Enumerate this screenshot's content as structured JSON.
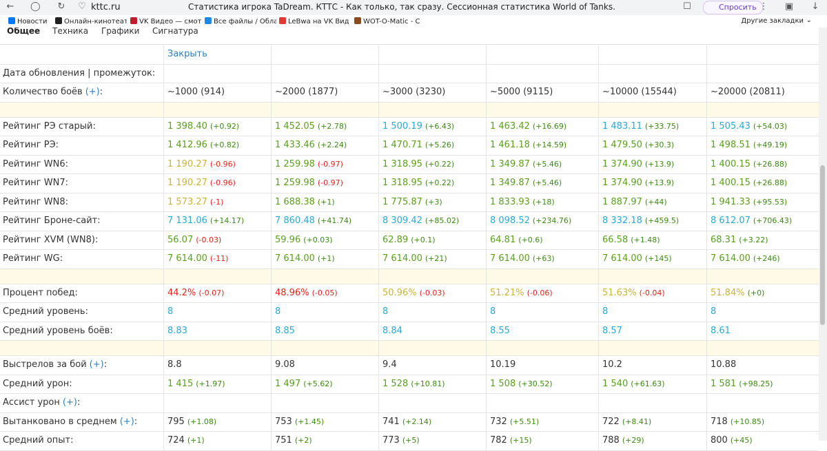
{
  "browser": {
    "url": "kttc.ru",
    "title": "Статистика игрока TaDream. КТТС - Как только, так сразу. Сессионная статистика World of Tanks.",
    "ask": "Спросить",
    "bookmarks": [
      "Новости",
      "Онлайн-кинотеат",
      "VK Видео — смот",
      "Все файлы / Обла",
      "LeBwa на VK Вид",
      "WOT-O-Matic - С"
    ],
    "other_bookmarks": "Другие закладки"
  },
  "tabs": [
    "Общее",
    "Техника",
    "Графики",
    "Сигнатура"
  ],
  "table": {
    "rows": [
      {
        "cells": [
          {
            "value": "Закрыть",
            "color": "#2a7fc0"
          }
        ]
      },
      {
        "label": "Дата обновления | промежуток:",
        "cells": []
      },
      {
        "label": {
          "text": "Количество боёв",
          "link": "(+)",
          "suffix": ":"
        },
        "cells": [
          {
            "value": "~1000 (914)",
            "color": "#333333"
          },
          {
            "value": "~2000 (1877)",
            "color": "#333333"
          },
          {
            "value": "~3000 (3230)",
            "color": "#333333"
          },
          {
            "value": "~5000 (9115)",
            "color": "#333333"
          },
          {
            "value": "~10000 (15544)",
            "color": "#333333"
          },
          {
            "value": "~20000 (20811)",
            "color": "#333333"
          }
        ]
      },
      {
        "separator": true
      },
      {
        "label": "Рейтинг РЭ старый:",
        "cells": [
          {
            "value": "1 398.40",
            "delta": "(+0.92)",
            "color": "#5a9e1e",
            "delta_color": "#3b8a12"
          },
          {
            "value": "1 452.05",
            "delta": "(+2.78)",
            "color": "#5a9e1e",
            "delta_color": "#3b8a12"
          },
          {
            "value": "1 500.19",
            "delta": "(+6.43)",
            "color": "#29a9d6",
            "delta_color": "#3b8a12"
          },
          {
            "value": "1 463.42",
            "delta": "(+16.69)",
            "color": "#5a9e1e",
            "delta_color": "#3b8a12"
          },
          {
            "value": "1 483.11",
            "delta": "(+33.75)",
            "color": "#29a9d6",
            "delta_color": "#3b8a12"
          },
          {
            "value": "1 505.43",
            "delta": "(+54.03)",
            "color": "#29a9d6",
            "delta_color": "#3b8a12"
          }
        ]
      },
      {
        "label": "Рейтинг РЭ:",
        "cells": [
          {
            "value": "1 412.96",
            "delta": "(+0.82)",
            "color": "#5a9e1e",
            "delta_color": "#3b8a12"
          },
          {
            "value": "1 433.46",
            "delta": "(+2.24)",
            "color": "#5a9e1e",
            "delta_color": "#3b8a12"
          },
          {
            "value": "1 470.71",
            "delta": "(+5.26)",
            "color": "#5a9e1e",
            "delta_color": "#3b8a12"
          },
          {
            "value": "1 461.18",
            "delta": "(+14.59)",
            "color": "#5a9e1e",
            "delta_color": "#3b8a12"
          },
          {
            "value": "1 479.50",
            "delta": "(+30.3)",
            "color": "#5a9e1e",
            "delta_color": "#3b8a12"
          },
          {
            "value": "1 498.51",
            "delta": "(+49.19)",
            "color": "#5a9e1e",
            "delta_color": "#3b8a12"
          }
        ]
      },
      {
        "label": "Рейтинг WN6:",
        "cells": [
          {
            "value": "1 190.27",
            "delta": "(-0.96)",
            "color": "#c9b43a",
            "delta_color": "#e0251b"
          },
          {
            "value": "1 259.98",
            "delta": "(-0.97)",
            "color": "#5a9e1e",
            "delta_color": "#e0251b"
          },
          {
            "value": "1 318.95",
            "delta": "(+0.22)",
            "color": "#5a9e1e",
            "delta_color": "#3b8a12"
          },
          {
            "value": "1 349.87",
            "delta": "(+5.46)",
            "color": "#5a9e1e",
            "delta_color": "#3b8a12"
          },
          {
            "value": "1 374.90",
            "delta": "(+13.9)",
            "color": "#5a9e1e",
            "delta_color": "#3b8a12"
          },
          {
            "value": "1 400.15",
            "delta": "(+26.88)",
            "color": "#5a9e1e",
            "delta_color": "#3b8a12"
          }
        ]
      },
      {
        "label": "Рейтинг WN7:",
        "cells": [
          {
            "value": "1 190.27",
            "delta": "(-0.96)",
            "color": "#c9b43a",
            "delta_color": "#e0251b"
          },
          {
            "value": "1 259.98",
            "delta": "(-0.97)",
            "color": "#5a9e1e",
            "delta_color": "#e0251b"
          },
          {
            "value": "1 318.95",
            "delta": "(+0.22)",
            "color": "#5a9e1e",
            "delta_color": "#3b8a12"
          },
          {
            "value": "1 349.87",
            "delta": "(+5.46)",
            "color": "#5a9e1e",
            "delta_color": "#3b8a12"
          },
          {
            "value": "1 374.90",
            "delta": "(+13.9)",
            "color": "#5a9e1e",
            "delta_color": "#3b8a12"
          },
          {
            "value": "1 400.15",
            "delta": "(+26.88)",
            "color": "#5a9e1e",
            "delta_color": "#3b8a12"
          }
        ]
      },
      {
        "label": "Рейтинг WN8:",
        "cells": [
          {
            "value": "1 573.27",
            "delta": "(-1)",
            "color": "#c9b43a",
            "delta_color": "#e0251b"
          },
          {
            "value": "1 688.38",
            "delta": "(+1)",
            "color": "#5a9e1e",
            "delta_color": "#3b8a12"
          },
          {
            "value": "1 775.87",
            "delta": "(+3)",
            "color": "#5a9e1e",
            "delta_color": "#3b8a12"
          },
          {
            "value": "1 833.93",
            "delta": "(+18)",
            "color": "#5a9e1e",
            "delta_color": "#3b8a12"
          },
          {
            "value": "1 887.97",
            "delta": "(+44)",
            "color": "#5a9e1e",
            "delta_color": "#3b8a12"
          },
          {
            "value": "1 941.33",
            "delta": "(+95.53)",
            "color": "#5a9e1e",
            "delta_color": "#3b8a12"
          }
        ]
      },
      {
        "label": "Рейтинг Броне-сайт:",
        "cells": [
          {
            "value": "7 131.06",
            "delta": "(+14.17)",
            "color": "#29a9d6",
            "delta_color": "#3b8a12"
          },
          {
            "value": "7 860.48",
            "delta": "(+41.74)",
            "color": "#29a9d6",
            "delta_color": "#3b8a12"
          },
          {
            "value": "8 309.42",
            "delta": "(+85.02)",
            "color": "#29a9d6",
            "delta_color": "#3b8a12"
          },
          {
            "value": "8 098.52",
            "delta": "(+234.76)",
            "color": "#29a9d6",
            "delta_color": "#3b8a12"
          },
          {
            "value": "8 332.18",
            "delta": "(+459.5)",
            "color": "#29a9d6",
            "delta_color": "#3b8a12"
          },
          {
            "value": "8 612.07",
            "delta": "(+706.43)",
            "color": "#29a9d6",
            "delta_color": "#3b8a12"
          }
        ]
      },
      {
        "label": "Рейтинг XVM (WN8):",
        "cells": [
          {
            "value": "56.07",
            "delta": "(-0.03)",
            "color": "#5a9e1e",
            "delta_color": "#e0251b"
          },
          {
            "value": "59.96",
            "delta": "(+0.03)",
            "color": "#5a9e1e",
            "delta_color": "#3b8a12"
          },
          {
            "value": "62.89",
            "delta": "(+0.1)",
            "color": "#5a9e1e",
            "delta_color": "#3b8a12"
          },
          {
            "value": "64.81",
            "delta": "(+0.6)",
            "color": "#5a9e1e",
            "delta_color": "#3b8a12"
          },
          {
            "value": "66.58",
            "delta": "(+1.48)",
            "color": "#5a9e1e",
            "delta_color": "#3b8a12"
          },
          {
            "value": "68.31",
            "delta": "(+3.22)",
            "color": "#5a9e1e",
            "delta_color": "#3b8a12"
          }
        ]
      },
      {
        "label": "Рейтинг WG:",
        "cells": [
          {
            "value": "7 614.00",
            "delta": "(-11)",
            "color": "#5a9e1e",
            "delta_color": "#e0251b"
          },
          {
            "value": "7 614.00",
            "delta": "(+1)",
            "color": "#5a9e1e",
            "delta_color": "#3b8a12"
          },
          {
            "value": "7 614.00",
            "delta": "(+21)",
            "color": "#5a9e1e",
            "delta_color": "#3b8a12"
          },
          {
            "value": "7 614.00",
            "delta": "(+63)",
            "color": "#5a9e1e",
            "delta_color": "#3b8a12"
          },
          {
            "value": "7 614.00",
            "delta": "(+145)",
            "color": "#5a9e1e",
            "delta_color": "#3b8a12"
          },
          {
            "value": "7 614.00",
            "delta": "(+246)",
            "color": "#5a9e1e",
            "delta_color": "#3b8a12"
          }
        ]
      },
      {
        "separator": true
      },
      {
        "label": "Процент побед:",
        "cells": [
          {
            "value": "44.2%",
            "delta": "(-0.07)",
            "color": "#e0251b",
            "delta_color": "#e0251b"
          },
          {
            "value": "48.96%",
            "delta": "(-0.05)",
            "color": "#e0251b",
            "delta_color": "#e0251b"
          },
          {
            "value": "50.96%",
            "delta": "(-0.03)",
            "color": "#c9b43a",
            "delta_color": "#e0251b"
          },
          {
            "value": "51.21%",
            "delta": "(-0.06)",
            "color": "#c9b43a",
            "delta_color": "#e0251b"
          },
          {
            "value": "51.63%",
            "delta": "(-0.04)",
            "color": "#c9b43a",
            "delta_color": "#e0251b"
          },
          {
            "value": "51.84%",
            "delta": "(+0)",
            "color": "#c9b43a",
            "delta_color": "#3b8a12"
          }
        ]
      },
      {
        "label": "Средний уровень:",
        "cells": [
          {
            "value": "8",
            "color": "#29a9d6"
          },
          {
            "value": "8",
            "color": "#29a9d6"
          },
          {
            "value": "8",
            "color": "#29a9d6"
          },
          {
            "value": "8",
            "color": "#29a9d6"
          },
          {
            "value": "8",
            "color": "#29a9d6"
          },
          {
            "value": "8",
            "color": "#29a9d6"
          }
        ]
      },
      {
        "label": "Средний уровень боёв:",
        "cells": [
          {
            "value": "8.83",
            "color": "#29a9d6"
          },
          {
            "value": "8.85",
            "color": "#29a9d6"
          },
          {
            "value": "8.84",
            "color": "#29a9d6"
          },
          {
            "value": "8.55",
            "color": "#29a9d6"
          },
          {
            "value": "8.57",
            "color": "#29a9d6"
          },
          {
            "value": "8.61",
            "color": "#29a9d6"
          }
        ]
      },
      {
        "separator": true
      },
      {
        "label": {
          "text": "Выстрелов за бой",
          "link": "(+)",
          "suffix": ":"
        },
        "cells": [
          {
            "value": "8.8",
            "color": "#333333"
          },
          {
            "value": "9.08",
            "color": "#333333"
          },
          {
            "value": "9.4",
            "color": "#333333"
          },
          {
            "value": "10.19",
            "color": "#333333"
          },
          {
            "value": "10.2",
            "color": "#333333"
          },
          {
            "value": "10.88",
            "color": "#333333"
          }
        ]
      },
      {
        "label": "Средний урон:",
        "cells": [
          {
            "value": "1 415",
            "delta": "(+1.97)",
            "color": "#5a9e1e",
            "delta_color": "#3b8a12"
          },
          {
            "value": "1 497",
            "delta": "(+5.62)",
            "color": "#5a9e1e",
            "delta_color": "#3b8a12"
          },
          {
            "value": "1 528",
            "delta": "(+10.81)",
            "color": "#5a9e1e",
            "delta_color": "#3b8a12"
          },
          {
            "value": "1 508",
            "delta": "(+30.52)",
            "color": "#5a9e1e",
            "delta_color": "#3b8a12"
          },
          {
            "value": "1 540",
            "delta": "(+61.63)",
            "color": "#5a9e1e",
            "delta_color": "#3b8a12"
          },
          {
            "value": "1 581",
            "delta": "(+98.25)",
            "color": "#5a9e1e",
            "delta_color": "#3b8a12"
          }
        ]
      },
      {
        "label": {
          "text": "Ассист урон",
          "link": "(+)",
          "suffix": ":"
        },
        "cells": []
      },
      {
        "label": {
          "text": "Вытанковано в среднем",
          "link": "(+)",
          "suffix": ":"
        },
        "cells": [
          {
            "value": "795",
            "delta": "(+1.08)",
            "color": "#333333",
            "delta_color": "#3b8a12"
          },
          {
            "value": "753",
            "delta": "(+1.45)",
            "color": "#333333",
            "delta_color": "#3b8a12"
          },
          {
            "value": "741",
            "delta": "(+2.14)",
            "color": "#333333",
            "delta_color": "#3b8a12"
          },
          {
            "value": "732",
            "delta": "(+5.51)",
            "color": "#333333",
            "delta_color": "#3b8a12"
          },
          {
            "value": "722",
            "delta": "(+8.41)",
            "color": "#333333",
            "delta_color": "#3b8a12"
          },
          {
            "value": "718",
            "delta": "(+10.85)",
            "color": "#333333",
            "delta_color": "#3b8a12"
          }
        ]
      },
      {
        "label": "Средний опыт:",
        "cells": [
          {
            "value": "724",
            "delta": "(+1)",
            "color": "#333333",
            "delta_color": "#3b8a12"
          },
          {
            "value": "751",
            "delta": "(+2)",
            "color": "#333333",
            "delta_color": "#3b8a12"
          },
          {
            "value": "773",
            "delta": "(+5)",
            "color": "#333333",
            "delta_color": "#3b8a12"
          },
          {
            "value": "782",
            "delta": "(+15)",
            "color": "#333333",
            "delta_color": "#3b8a12"
          },
          {
            "value": "788",
            "delta": "(+29)",
            "color": "#333333",
            "delta_color": "#3b8a12"
          },
          {
            "value": "800",
            "delta": "(+45)",
            "color": "#333333",
            "delta_color": "#3b8a12"
          }
        ]
      }
    ]
  }
}
